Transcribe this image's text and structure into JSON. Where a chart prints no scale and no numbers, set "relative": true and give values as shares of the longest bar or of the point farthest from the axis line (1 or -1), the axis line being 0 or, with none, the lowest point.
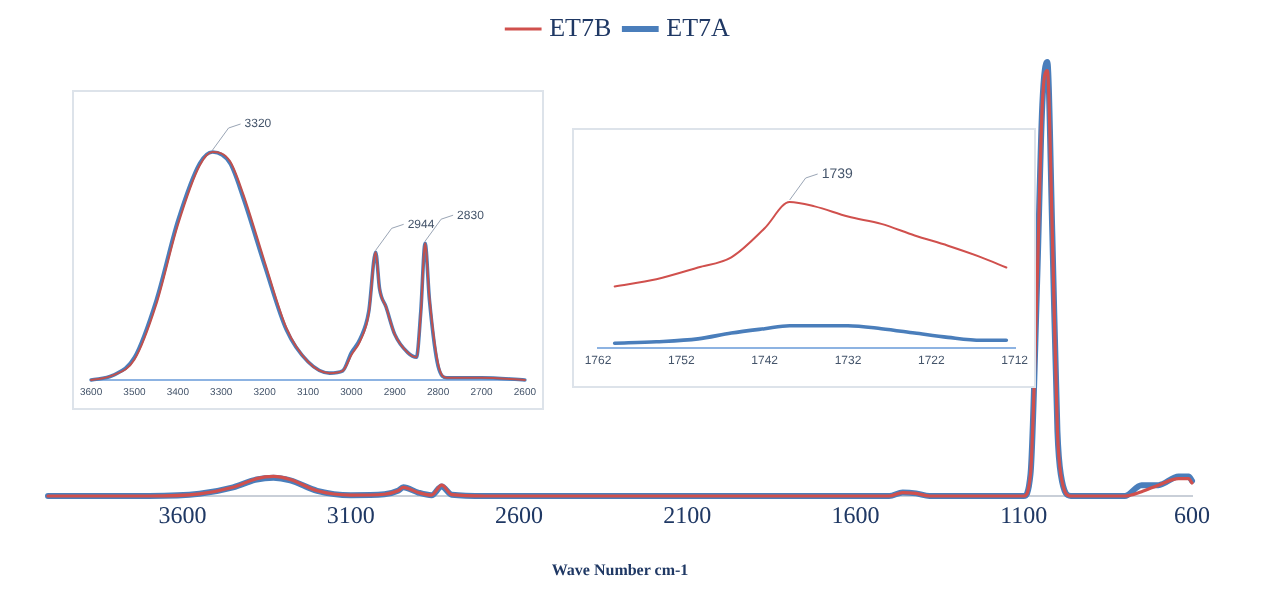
{
  "chart_data": [
    {
      "type": "line",
      "relative": true,
      "xlabel": "Wave Number cm-1",
      "legend": "top",
      "marker": "none",
      "x": [
        4000,
        3700,
        3550,
        3450,
        3380,
        3330,
        3280,
        3200,
        3100,
        3000,
        2960,
        2944,
        2900,
        2860,
        2830,
        2800,
        2700,
        1500,
        1460,
        1420,
        1380,
        1100,
        1080,
        1060,
        1045,
        1030,
        1015,
        1000,
        990,
        960,
        800,
        750,
        700,
        640,
        610,
        600
      ],
      "xlim": [
        4000,
        600
      ],
      "xticks": [
        3600,
        3100,
        2600,
        2100,
        1600,
        1100,
        600
      ],
      "series": [
        {
          "name": "ET7A",
          "color": "#4a7ebb",
          "values": [
            0,
            0,
            0.005,
            0.02,
            0.038,
            0.042,
            0.036,
            0.012,
            0.002,
            0.004,
            0.012,
            0.02,
            0.008,
            0.002,
            0.022,
            0.003,
            0,
            0,
            0.008,
            0.006,
            0,
            0,
            0.05,
            0.5,
            0.9,
            1,
            0.6,
            0.15,
            0.05,
            0,
            0,
            0.025,
            0.025,
            0.045,
            0.045,
            0.035
          ]
        },
        {
          "name": "ET7B",
          "color": "#d0504d",
          "values": [
            0,
            0,
            0.005,
            0.02,
            0.04,
            0.045,
            0.038,
            0.012,
            0.002,
            0.004,
            0.012,
            0.02,
            0.008,
            0.002,
            0.025,
            0.003,
            0,
            0,
            0.008,
            0.006,
            0,
            0,
            0.05,
            0.5,
            0.9,
            0.98,
            0.6,
            0.15,
            0.05,
            0,
            0,
            0.01,
            0.025,
            0.04,
            0.04,
            0.03
          ]
        }
      ]
    },
    {
      "type": "line",
      "relative": true,
      "marker": "none",
      "x": [
        3600,
        3550,
        3500,
        3450,
        3400,
        3350,
        3320,
        3280,
        3250,
        3200,
        3150,
        3100,
        3050,
        3020,
        3000,
        2980,
        2960,
        2944,
        2935,
        2920,
        2900,
        2870,
        2850,
        2840,
        2830,
        2820,
        2800,
        2780,
        2700,
        2600
      ],
      "xlim": [
        3600,
        2600
      ],
      "xticks": [
        3600,
        3500,
        3400,
        3300,
        3200,
        3100,
        3000,
        2900,
        2800,
        2700,
        2600
      ],
      "annotations": [
        {
          "text": "3320",
          "x": 3320,
          "y": 1
        },
        {
          "text": "2944",
          "x": 2944,
          "y": 0.56
        },
        {
          "text": "2830",
          "x": 2830,
          "y": 0.6
        }
      ],
      "series": [
        {
          "color": "#4a7ebb",
          "values": [
            0,
            0.02,
            0.1,
            0.35,
            0.7,
            0.95,
            1,
            0.95,
            0.8,
            0.5,
            0.22,
            0.08,
            0.03,
            0.04,
            0.12,
            0.18,
            0.3,
            0.56,
            0.4,
            0.32,
            0.2,
            0.12,
            0.1,
            0.3,
            0.6,
            0.35,
            0.06,
            0.01,
            0.01,
            0
          ]
        },
        {
          "color": "#c0504d",
          "values": [
            0,
            0.02,
            0.09,
            0.33,
            0.68,
            0.94,
            1,
            0.96,
            0.82,
            0.52,
            0.23,
            0.08,
            0.03,
            0.04,
            0.11,
            0.17,
            0.29,
            0.56,
            0.4,
            0.32,
            0.2,
            0.12,
            0.1,
            0.29,
            0.6,
            0.36,
            0.07,
            0.01,
            0.01,
            0
          ]
        }
      ]
    },
    {
      "type": "line",
      "relative": true,
      "marker": "none",
      "x": [
        1760,
        1755,
        1750,
        1746,
        1742,
        1739,
        1736,
        1732,
        1728,
        1724,
        1720,
        1716,
        1713
      ],
      "xlim": [
        1762,
        1712
      ],
      "xticks": [
        1762,
        1752,
        1742,
        1732,
        1722,
        1712
      ],
      "annotations": [
        {
          "text": "1739",
          "x": 1739,
          "y": 1
        }
      ],
      "series": [
        {
          "color": "#4a7ebb",
          "values": [
            0.03,
            0.04,
            0.06,
            0.1,
            0.13,
            0.15,
            0.15,
            0.15,
            0.13,
            0.1,
            0.07,
            0.05,
            0.05
          ]
        },
        {
          "color": "#d0504d",
          "values": [
            0.42,
            0.47,
            0.55,
            0.62,
            0.82,
            1,
            0.97,
            0.9,
            0.85,
            0.77,
            0.7,
            0.62,
            0.55
          ]
        }
      ]
    }
  ]
}
